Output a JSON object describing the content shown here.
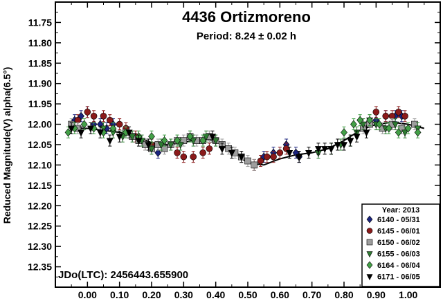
{
  "chart_data": {
    "type": "scatter",
    "title": "4436 Ortizmoreno",
    "subtitle": "Period: 8.24 ± 0.02 h",
    "xlabel": "",
    "ylabel": "Reduced Magnitude(V) alpha(6.5°)",
    "xlim": [
      -0.1,
      1.1
    ],
    "ylim": [
      12.4,
      11.7
    ],
    "y_inverted": true,
    "x_ticks": [
      "0.00",
      "0.10",
      "0.20",
      "0.30",
      "0.40",
      "0.50",
      "0.60",
      "0.70",
      "0.80",
      "0.90",
      "1.00"
    ],
    "y_ticks": [
      "11.75",
      "11.80",
      "11.85",
      "11.90",
      "11.95",
      "12.00",
      "12.05",
      "12.10",
      "12.15",
      "12.20",
      "12.25",
      "12.30",
      "12.35"
    ],
    "annotation": "JDo(LTC): 2456443.655900",
    "legend_title": "Year: 2013",
    "legend_position": "bottom-right",
    "series": [
      {
        "name": "6140 - 05/31",
        "marker": "diamond",
        "color": "#1a237e",
        "x": [
          -0.04,
          -0.02,
          0.0,
          0.02,
          0.04,
          0.06,
          0.08,
          0.22,
          0.55,
          0.58,
          0.62,
          0.65,
          0.66,
          0.9,
          0.93,
          0.96,
          0.98
        ],
        "y": [
          11.99,
          11.98,
          11.97,
          12.0,
          12.0,
          12.01,
          12.0,
          12.07,
          12.08,
          12.07,
          12.05,
          12.07,
          12.08,
          11.99,
          11.98,
          11.98,
          11.98
        ]
      },
      {
        "name": "6145 - 06/01",
        "marker": "circle",
        "color": "#8b1a1a",
        "x": [
          -0.03,
          0.0,
          0.02,
          0.05,
          0.07,
          0.1,
          0.12,
          0.15,
          0.18,
          0.2,
          0.28,
          0.3,
          0.33,
          0.36,
          0.38,
          0.52,
          0.54,
          0.56,
          0.58,
          0.6,
          0.62,
          0.9,
          0.93,
          0.95,
          0.97,
          0.99
        ],
        "y": [
          11.99,
          11.97,
          11.98,
          11.98,
          11.99,
          12.0,
          12.01,
          12.03,
          12.05,
          12.05,
          12.07,
          12.08,
          12.08,
          12.07,
          12.06,
          12.1,
          12.09,
          12.08,
          12.08,
          12.07,
          12.06,
          11.97,
          11.98,
          11.98,
          11.97,
          11.98
        ]
      },
      {
        "name": "6150 - 06/02",
        "marker": "square",
        "color": "#9e9e9e",
        "x": [
          -0.05,
          -0.03,
          0.12,
          0.14,
          0.16,
          0.18,
          0.2,
          0.22,
          0.24,
          0.26,
          0.28,
          0.3,
          0.32,
          0.34,
          0.36,
          0.38,
          0.4,
          0.42,
          0.44,
          0.46,
          0.48,
          0.5,
          0.52,
          0.86,
          0.88,
          0.92,
          0.95,
          0.98,
          1.02
        ],
        "y": [
          12.0,
          12.01,
          12.02,
          12.03,
          12.04,
          12.05,
          12.06,
          12.05,
          12.06,
          12.05,
          12.04,
          12.04,
          12.03,
          12.04,
          12.04,
          12.03,
          12.04,
          12.05,
          12.06,
          12.07,
          12.08,
          12.09,
          12.1,
          12.01,
          12.0,
          12.01,
          12.0,
          12.01,
          12.0
        ]
      },
      {
        "name": "6155 - 06/03",
        "marker": "triangle-down",
        "color": "#2e7d32",
        "x": [
          0.05,
          0.08,
          0.11,
          0.14,
          0.17,
          0.2,
          0.23,
          0.26,
          0.29,
          0.33,
          0.37,
          0.4,
          0.72,
          0.76,
          0.79,
          0.82,
          0.84,
          0.86,
          0.88,
          0.9,
          0.93,
          0.96,
          0.99,
          1.03
        ],
        "y": [
          12.01,
          12.02,
          12.03,
          12.03,
          12.04,
          12.06,
          12.05,
          12.05,
          12.05,
          12.04,
          12.03,
          12.04,
          12.07,
          12.06,
          12.05,
          12.04,
          12.02,
          12.0,
          11.99,
          12.0,
          12.01,
          12.0,
          12.02,
          12.01
        ]
      },
      {
        "name": "6164 - 06/04",
        "marker": "diamond",
        "color": "#43a047",
        "x": [
          -0.06,
          -0.04,
          -0.01,
          0.02,
          0.05,
          0.08,
          0.12,
          0.16,
          0.2,
          0.24,
          0.28,
          0.32,
          0.36,
          0.8,
          0.83,
          0.85,
          0.88,
          0.91,
          0.94,
          0.97,
          1.0,
          1.03
        ],
        "y": [
          12.02,
          12.01,
          12.0,
          12.01,
          12.02,
          12.01,
          12.02,
          12.03,
          12.03,
          12.04,
          12.04,
          12.03,
          12.04,
          12.02,
          12.0,
          11.99,
          11.99,
          12.0,
          12.01,
          12.02,
          12.01,
          12.02
        ]
      },
      {
        "name": "6171 - 06/05",
        "marker": "triangle-down",
        "color": "#000000",
        "x": [
          -0.05,
          -0.02,
          0.01,
          0.04,
          0.07,
          0.1,
          0.13,
          0.16,
          0.19,
          0.39,
          0.42,
          0.45,
          0.48,
          0.63,
          0.66,
          0.69,
          0.72,
          0.74,
          0.76,
          0.78,
          0.8,
          0.82,
          0.84,
          0.87
        ],
        "y": [
          12.01,
          12.02,
          12.01,
          12.02,
          12.04,
          12.03,
          12.02,
          12.04,
          12.05,
          12.03,
          12.06,
          12.07,
          12.08,
          12.07,
          12.08,
          12.07,
          12.06,
          12.06,
          12.06,
          12.05,
          12.05,
          12.04,
          12.03,
          12.02
        ]
      }
    ],
    "fit_curve": {
      "x": [
        -0.05,
        0.0,
        0.05,
        0.1,
        0.15,
        0.2,
        0.25,
        0.3,
        0.35,
        0.4,
        0.45,
        0.5,
        0.55,
        0.6,
        0.65,
        0.7,
        0.75,
        0.8,
        0.85,
        0.9,
        0.95,
        1.0,
        1.05
      ],
      "y": [
        12.01,
        12.01,
        12.015,
        12.02,
        12.03,
        12.045,
        12.05,
        12.045,
        12.035,
        12.04,
        12.065,
        12.095,
        12.1,
        12.085,
        12.075,
        12.07,
        12.06,
        12.04,
        12.015,
        12.0,
        11.995,
        12.0,
        12.01
      ]
    }
  }
}
